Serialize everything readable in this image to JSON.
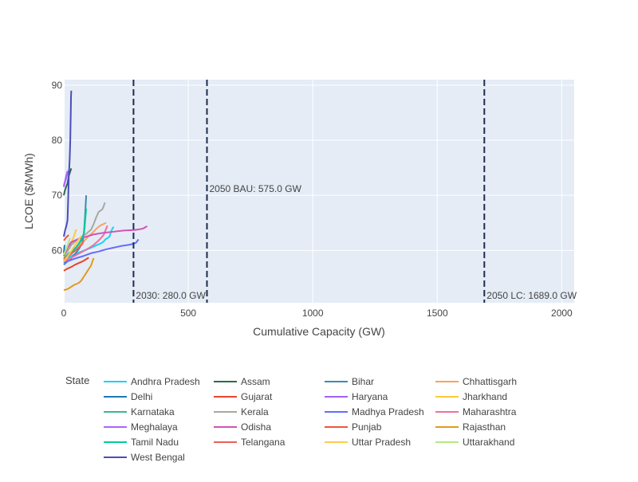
{
  "chart_data": {
    "type": "line",
    "xlabel": "Cumulative Capacity (GW)",
    "ylabel": "LCOE ($/MWh)",
    "xlim": [
      0,
      2050
    ],
    "ylim": [
      50.5,
      91
    ],
    "xticks": [
      0,
      500,
      1000,
      1500,
      2000
    ],
    "xtick_labels": [
      "0",
      "500",
      "1000",
      "1500",
      "2000"
    ],
    "yticks": [
      60,
      70,
      80,
      90
    ],
    "ytick_labels": [
      "60",
      "70",
      "80",
      "90"
    ],
    "grid": true,
    "legend_title": "State",
    "legend_position": "bottom",
    "reference_lines": [
      {
        "x": 280,
        "label": "2030: 280.0 GW",
        "label_pos": "bottom"
      },
      {
        "x": 575,
        "label": "2050 BAU: 575.0 GW",
        "label_pos": "middle"
      },
      {
        "x": 1689,
        "label": "2050 LC: 1689.0 GW",
        "label_pos": "bottom"
      }
    ],
    "series": [
      {
        "name": "Andhra Pradesh",
        "color": "#19d3f3",
        "x": [
          0,
          15,
          30,
          50,
          70,
          90,
          110,
          130,
          150,
          160,
          165,
          170,
          175,
          180,
          185,
          190,
          200
        ],
        "y": [
          58.2,
          58.6,
          59.0,
          59.4,
          59.8,
          60.1,
          60.5,
          60.9,
          61.3,
          61.6,
          61.9,
          62.1,
          62.2,
          62.4,
          62.6,
          63.5,
          64.3
        ]
      },
      {
        "name": "Assam",
        "color": "#2e6a4b",
        "x": [
          0,
          5,
          10,
          15,
          20,
          25,
          30
        ],
        "y": [
          70.0,
          71.0,
          71.6,
          72.2,
          73.5,
          74.2,
          74.9
        ]
      },
      {
        "name": "Bihar",
        "color": "#3d8ab0",
        "x": [
          0,
          10,
          20,
          30,
          40,
          50,
          60,
          70,
          80,
          85,
          90
        ],
        "y": [
          57.4,
          57.8,
          58.2,
          58.6,
          59.1,
          59.6,
          60.2,
          61.0,
          62.5,
          66.0,
          70.0
        ]
      },
      {
        "name": "Chhattisgarh",
        "color": "#f4a460",
        "x": [
          0,
          10,
          20,
          35,
          50,
          65,
          80,
          90,
          100,
          110,
          120,
          130,
          140,
          150,
          160,
          170
        ],
        "y": [
          57.7,
          58.3,
          59.0,
          59.8,
          60.4,
          61.1,
          61.7,
          62.1,
          62.6,
          63.0,
          63.4,
          63.9,
          64.3,
          64.6,
          64.8,
          65.0
        ]
      },
      {
        "name": "Delhi",
        "color": "#1f77b4",
        "x": [
          0,
          1,
          2,
          3
        ],
        "y": [
          59.5,
          60.0,
          60.5,
          61.0
        ]
      },
      {
        "name": "Gujarat",
        "color": "#e8452c",
        "x": [
          0,
          15,
          30,
          45,
          60,
          75,
          90,
          100
        ],
        "y": [
          56.3,
          56.7,
          57.0,
          57.4,
          57.7,
          58.0,
          58.4,
          58.7
        ]
      },
      {
        "name": "Haryana",
        "color": "#a35ff5",
        "x": [
          0,
          5,
          10,
          15,
          20
        ],
        "y": [
          71.8,
          72.5,
          73.2,
          74.0,
          74.5
        ]
      },
      {
        "name": "Jharkhand",
        "color": "#fcc93a",
        "x": [
          0,
          10,
          20,
          30,
          40,
          50
        ],
        "y": [
          58.8,
          59.6,
          60.4,
          61.3,
          62.5,
          63.8
        ]
      },
      {
        "name": "Karnataka",
        "color": "#3eb58f",
        "x": [
          0,
          10,
          20,
          35,
          50,
          60,
          70,
          80,
          85
        ],
        "y": [
          58.5,
          59.0,
          59.5,
          60.0,
          60.6,
          61.2,
          61.8,
          63.0,
          64.5
        ]
      },
      {
        "name": "Kerala",
        "color": "#a8a8a0",
        "x": [
          0,
          10,
          20,
          30,
          50,
          70,
          90,
          110,
          120,
          130,
          140,
          150,
          155,
          160,
          165
        ],
        "y": [
          59.0,
          59.6,
          60.2,
          61.0,
          61.8,
          62.4,
          63.0,
          63.8,
          64.8,
          66.0,
          67.0,
          67.3,
          67.5,
          68.0,
          68.7
        ]
      },
      {
        "name": "Madhya Pradesh",
        "color": "#636efa",
        "x": [
          0,
          25,
          50,
          80,
          110,
          140,
          170,
          200,
          230,
          260,
          280,
          290,
          295,
          300
        ],
        "y": [
          57.8,
          58.2,
          58.6,
          59.0,
          59.5,
          59.8,
          60.2,
          60.5,
          60.8,
          61.0,
          61.2,
          61.4,
          61.7,
          62.0
        ]
      },
      {
        "name": "Maharashtra",
        "color": "#ef6fa3",
        "x": [
          0,
          20,
          40,
          60,
          80,
          100,
          120,
          140,
          160,
          175
        ],
        "y": [
          58.0,
          58.4,
          58.9,
          59.4,
          59.9,
          60.4,
          61.0,
          61.8,
          62.8,
          64.5
        ]
      },
      {
        "name": "Meghalaya",
        "color": "#ab63fa",
        "x": [
          0,
          5,
          10,
          15
        ],
        "y": [
          71.5,
          72.6,
          73.6,
          74.4
        ]
      },
      {
        "name": "Odisha",
        "color": "#d352b5",
        "x": [
          0,
          15,
          30,
          60,
          90,
          120,
          160,
          200,
          240,
          280,
          300,
          320,
          335
        ],
        "y": [
          59.0,
          60.5,
          61.5,
          62.1,
          62.5,
          62.9,
          63.2,
          63.4,
          63.6,
          63.7,
          63.8,
          64.0,
          64.4
        ]
      },
      {
        "name": "Punjab",
        "color": "#ef553b",
        "x": [
          0,
          5,
          10,
          15,
          20
        ],
        "y": [
          61.8,
          62.1,
          62.4,
          62.6,
          62.8
        ]
      },
      {
        "name": "Rajasthan",
        "color": "#e39a1a",
        "x": [
          0,
          10,
          20,
          30,
          40,
          50,
          60,
          70,
          80,
          90,
          100,
          110,
          115,
          120
        ],
        "y": [
          52.8,
          52.9,
          53.1,
          53.4,
          53.7,
          53.9,
          54.1,
          54.5,
          55.2,
          55.9,
          56.6,
          57.3,
          58.0,
          58.6
        ]
      },
      {
        "name": "Tamil Nadu",
        "color": "#00cc96",
        "x": [
          0,
          10,
          20,
          30,
          40,
          50,
          60,
          70,
          80,
          85,
          90
        ],
        "y": [
          58.1,
          58.6,
          59.0,
          59.5,
          60.0,
          60.6,
          61.2,
          62.0,
          63.0,
          65.0,
          67.6
        ]
      },
      {
        "name": "Telangana",
        "color": "#e9605a",
        "x": [
          0,
          15,
          30,
          45,
          60,
          75,
          80
        ],
        "y": [
          58.4,
          58.9,
          59.4,
          59.9,
          60.5,
          61.2,
          61.8
        ]
      },
      {
        "name": "Uttar Pradesh",
        "color": "#fecb52",
        "x": [
          0,
          10,
          20,
          30,
          40,
          50,
          60,
          70
        ],
        "y": [
          58.0,
          58.6,
          59.2,
          59.9,
          60.6,
          61.3,
          62.0,
          62.6
        ]
      },
      {
        "name": "Uttarakhand",
        "color": "#b6e880",
        "x": [
          0,
          5,
          10,
          15,
          20,
          25
        ],
        "y": [
          59.2,
          59.8,
          60.3,
          60.9,
          61.5,
          62.2
        ]
      },
      {
        "name": "West Bengal",
        "color": "#4b4dbb",
        "x": [
          0,
          3,
          6,
          9,
          12,
          15,
          18,
          20,
          22,
          24,
          26,
          28,
          29,
          30
        ],
        "y": [
          62.5,
          63.2,
          63.8,
          64.2,
          64.8,
          65.5,
          70.0,
          73.5,
          75.0,
          77.0,
          80.0,
          85.0,
          88.0,
          89.0
        ]
      }
    ]
  }
}
